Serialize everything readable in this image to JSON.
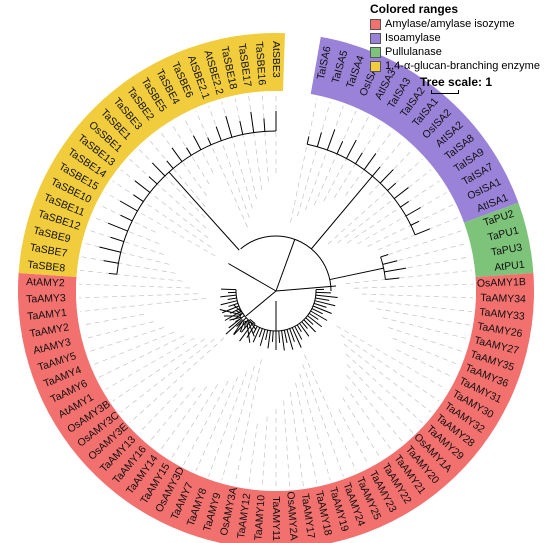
{
  "legend": {
    "title": "Colored ranges",
    "items": [
      {
        "label": "Amylase/amylase isozyme",
        "color": "#f2706e"
      },
      {
        "label": "Isoamylase",
        "color": "#9a82d8"
      },
      {
        "label": "Pullulanase",
        "color": "#7dc47a"
      },
      {
        "label": "1,4-α-glucan-branching enzyme",
        "color": "#f1cc3c"
      }
    ]
  },
  "scale": {
    "label": "Tree scale: 1"
  },
  "tree": {
    "groups": [
      {
        "name": "Isoamylase",
        "color": "#9a82d8",
        "leaves": [
          "TaISA6",
          "TaISA5",
          "TaISA4",
          "OsISA3",
          "AtISA3",
          "TaISA3",
          "TaISA2",
          "TaISA1",
          "OsISA2",
          "AtISA2",
          "TaISA8",
          "TaISA9",
          "TaISA7",
          "OsISA1",
          "AtISA1"
        ]
      },
      {
        "name": "Pullulanase",
        "color": "#7dc47a",
        "leaves": [
          "TaPU2",
          "TaPU1",
          "TaPU3",
          "AtPU1"
        ]
      },
      {
        "name": "Amylase/amylase isozyme",
        "color": "#f2706e",
        "leaves": [
          "OsAMY1B",
          "TaAMY34",
          "TaAMY33",
          "TaAMY26",
          "TaAMY27",
          "TaAMY35",
          "TaAMY36",
          "TaAMY31",
          "TaAMY30",
          "TaAMY32",
          "TaAMY28",
          "TaAMY29",
          "OsAMY1A",
          "TaAMY20",
          "TaAMY21",
          "TaAMY22",
          "TaAMY23",
          "TaAMY25",
          "TaAMY24",
          "TaAMY19",
          "TaAMY18",
          "TaAMY17",
          "OsAMY2A",
          "TaAMY11",
          "TaAMY10",
          "TaAMY12",
          "OsAMY3A",
          "TaAMY9",
          "TaAMY8",
          "TaAMY7",
          "OsAMY3D",
          "TaAMY15",
          "TaAMY14",
          "TaAMY16",
          "TaAMY13",
          "OsAMY3E",
          "OsAMY3C",
          "OsAMY3B",
          "AtAMY1",
          "TaAMY6",
          "TaAMY4",
          "TaAMY5",
          "AtAMY3",
          "TaAMY2",
          "TaAMY1",
          "TaAMY3",
          "AtAMY2"
        ]
      },
      {
        "name": "1,4-α-glucan-branching enzyme",
        "color": "#f1cc3c",
        "leaves": [
          "TaSBE8",
          "TaSBE7",
          "TaSBE9",
          "TaSBE12",
          "TaSBE11",
          "TaSBE10",
          "TaSBE15",
          "TaSBE14",
          "TaSBE13",
          "OsSBE1",
          "TaSBE1",
          "TaSBE3",
          "TaSBE2",
          "TaSBE5",
          "TaSBE4",
          "TaSBE6",
          "AtSBE2.1",
          "AtSBE2.2",
          "TaSBE18",
          "TaSBE17",
          "TaSBE16",
          "AtSBE3"
        ]
      }
    ]
  }
}
